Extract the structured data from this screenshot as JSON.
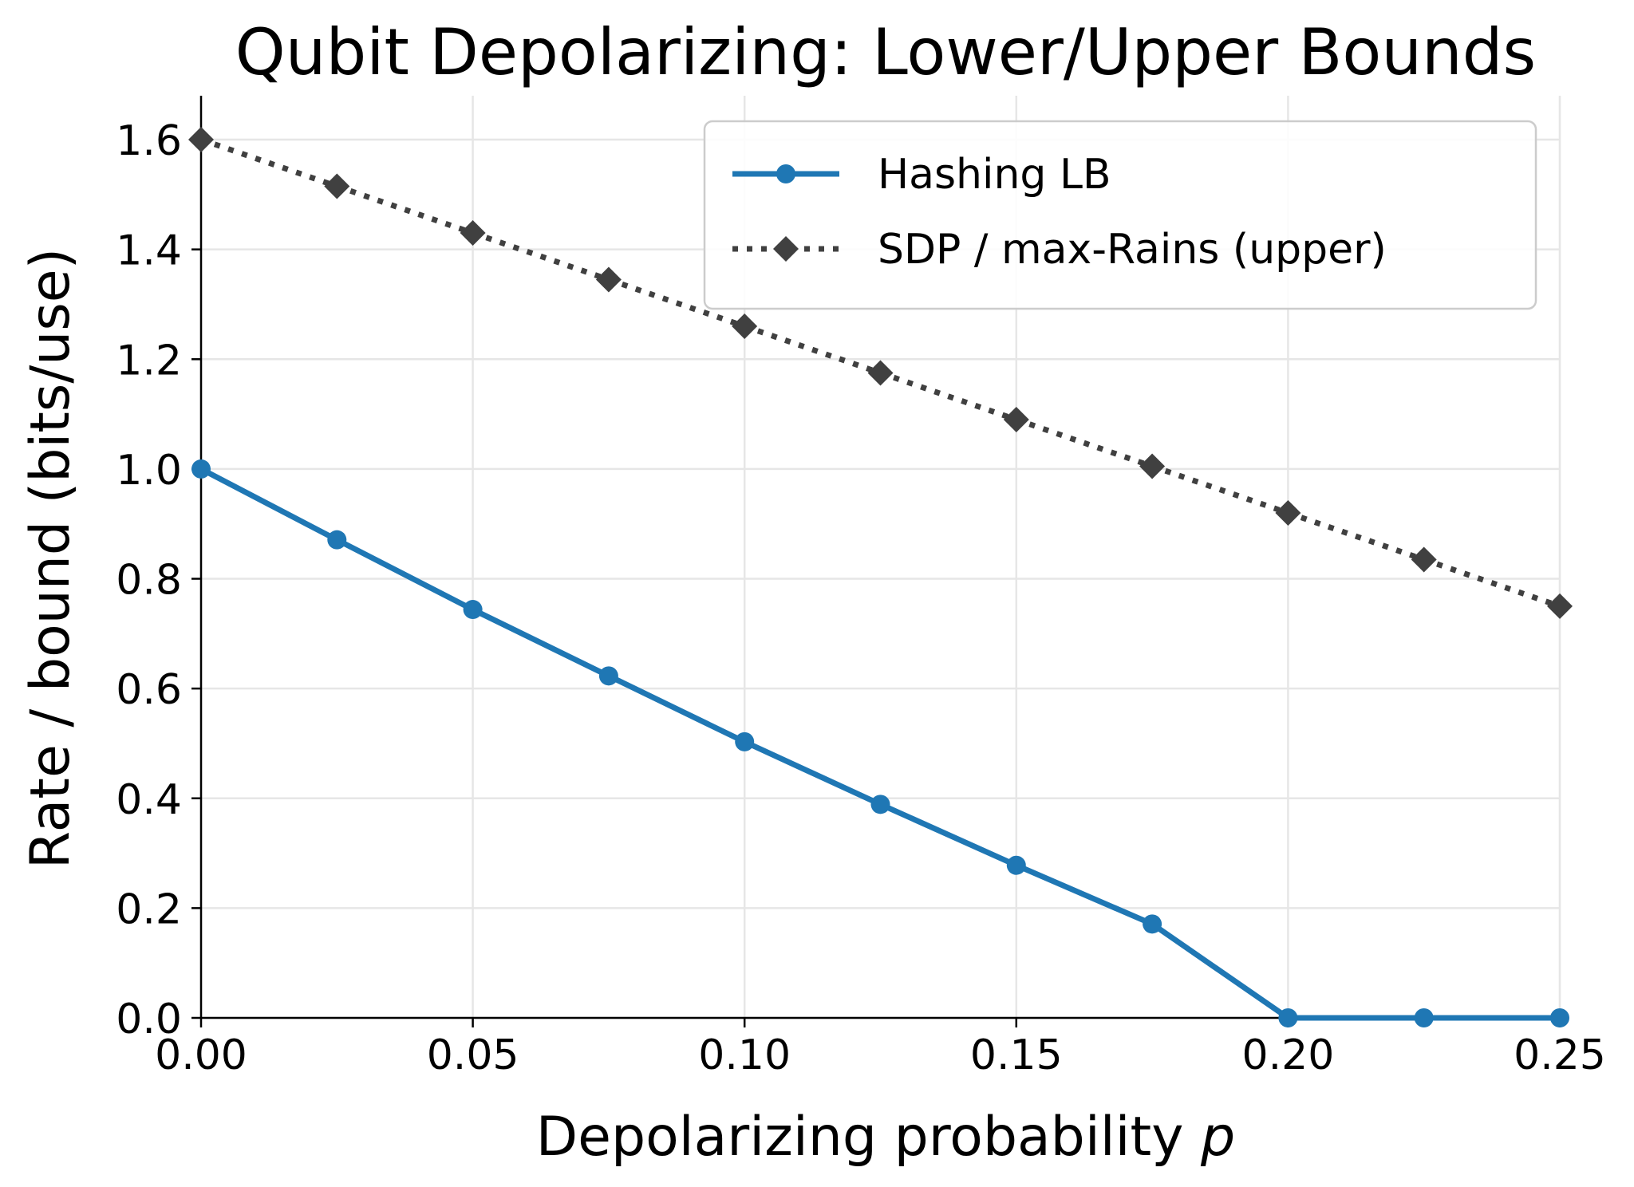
{
  "chart_data": {
    "type": "line",
    "title": "Qubit Depolarizing: Lower/Upper Bounds",
    "xlabel_prefix": "Depolarizing probability ",
    "xlabel_var": "p",
    "ylabel": "Rate / bound (bits/use)",
    "xlim": [
      0,
      0.25
    ],
    "ylim": [
      0,
      1.68
    ],
    "grid": true,
    "legend_position": "top-right",
    "x_ticks": [
      {
        "value": 0.0,
        "label": "0.00"
      },
      {
        "value": 0.05,
        "label": "0.05"
      },
      {
        "value": 0.1,
        "label": "0.10"
      },
      {
        "value": 0.15,
        "label": "0.15"
      },
      {
        "value": 0.2,
        "label": "0.20"
      },
      {
        "value": 0.25,
        "label": "0.25"
      }
    ],
    "y_ticks": [
      {
        "value": 0.0,
        "label": "0.0"
      },
      {
        "value": 0.2,
        "label": "0.2"
      },
      {
        "value": 0.4,
        "label": "0.4"
      },
      {
        "value": 0.6,
        "label": "0.6"
      },
      {
        "value": 0.8,
        "label": "0.8"
      },
      {
        "value": 1.0,
        "label": "1.0"
      },
      {
        "value": 1.2,
        "label": "1.2"
      },
      {
        "value": 1.4,
        "label": "1.4"
      },
      {
        "value": 1.6,
        "label": "1.6"
      }
    ],
    "x": [
      0.0,
      0.025,
      0.05,
      0.075,
      0.1,
      0.125,
      0.15,
      0.175,
      0.2,
      0.225,
      0.25
    ],
    "series": [
      {
        "name": "Hashing LB",
        "color": "#1f77b4",
        "style": "solid",
        "marker": "circle",
        "values": [
          1.0,
          0.871,
          0.744,
          0.623,
          0.503,
          0.389,
          0.278,
          0.171,
          0.0,
          0.0,
          0.0
        ]
      },
      {
        "name": "SDP / max-Rains (upper)",
        "color": "#404040",
        "style": "dotted",
        "marker": "diamond",
        "values": [
          1.6,
          1.515,
          1.43,
          1.345,
          1.26,
          1.175,
          1.09,
          1.005,
          0.92,
          0.835,
          0.75
        ]
      }
    ]
  }
}
